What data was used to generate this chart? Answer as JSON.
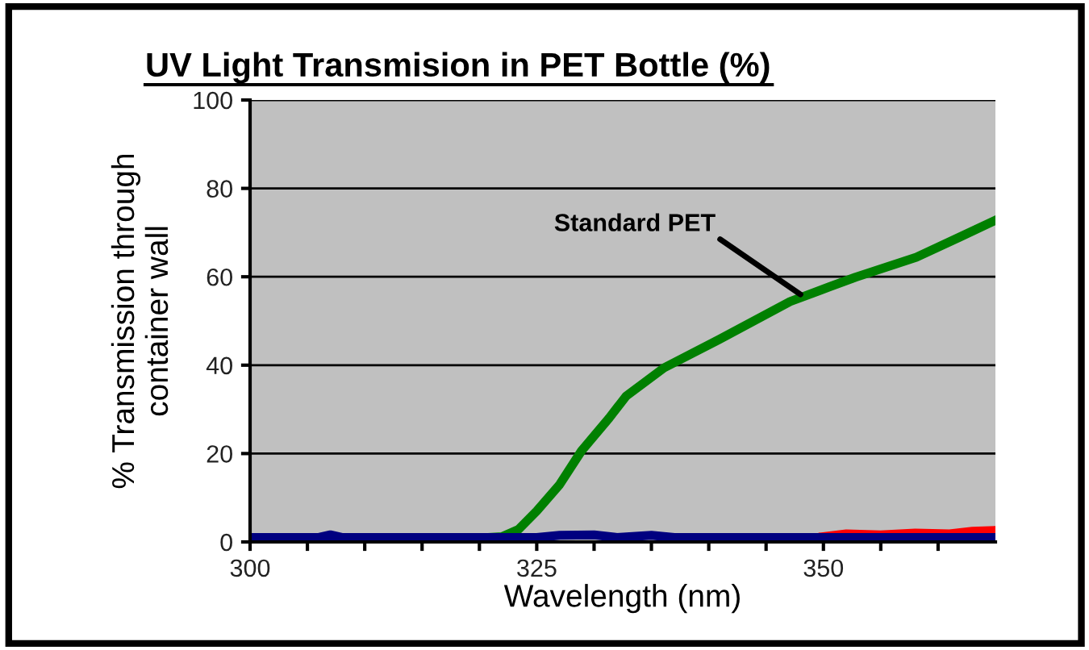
{
  "chart_data": {
    "type": "line",
    "title": "UV Light Transmision in PET Bottle (%)",
    "xlabel": "Wavelength (nm)",
    "ylabel": "% Transmission through\ncontainer wall",
    "series": [
      {
        "color": "#008000",
        "x": [
          300,
          319.5,
          322,
          323.4,
          325,
          327,
          328.9,
          331.3,
          332.8,
          336.1,
          340.9,
          347.1,
          350.5,
          352.8,
          358.1,
          361.9,
          365
        ],
        "values": [
          0.5,
          0.8,
          1.2,
          2.8,
          7,
          13,
          20.6,
          28,
          33,
          39.4,
          45.8,
          54.4,
          57.7,
          59.9,
          64.4,
          69,
          72.8
        ]
      },
      {
        "color": "#ff0000",
        "x": [
          350,
          352,
          355,
          358,
          361,
          363,
          365
        ],
        "values": [
          1.2,
          1.8,
          1.6,
          2,
          1.8,
          2.4,
          2.6
        ]
      },
      {
        "color": "#000080",
        "x": [
          300,
          306,
          307,
          308,
          325,
          327,
          330,
          332,
          335,
          337,
          340,
          350,
          365
        ],
        "values": [
          1,
          1,
          1.6,
          1,
          1,
          1.5,
          1.6,
          1,
          1.5,
          1,
          1,
          1,
          1
        ]
      }
    ],
    "xlim": [
      300,
      365
    ],
    "ylim": [
      0,
      100
    ],
    "xticks": [
      300,
      {
        "value": 305,
        "label": null
      },
      {
        "value": 310,
        "label": null
      },
      {
        "value": 315,
        "label": null
      },
      {
        "value": 320,
        "label": null
      },
      325,
      {
        "value": 330,
        "label": null
      },
      {
        "value": 335,
        "label": null
      },
      {
        "value": 340,
        "label": null
      },
      {
        "value": 345,
        "label": null
      },
      350,
      {
        "value": 355,
        "label": null
      },
      {
        "value": 360,
        "label": null
      }
    ],
    "yticks": [
      0,
      20,
      40,
      60,
      80,
      100
    ],
    "grid": "y",
    "legend": false,
    "marker": "none",
    "line_style": "solid",
    "annotations": [
      {
        "text": "Standard PET",
        "x": 348,
        "y": 56
      }
    ]
  }
}
